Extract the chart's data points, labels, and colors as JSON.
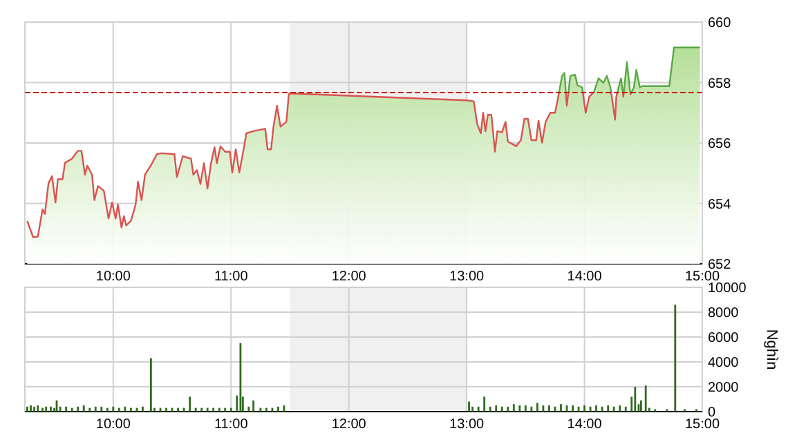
{
  "chart_data": [
    {
      "type": "area",
      "xlim": [
        9.25,
        15
      ],
      "xticks": [
        {
          "value": 10,
          "label": "10:00"
        },
        {
          "value": 11,
          "label": "11:00"
        },
        {
          "value": 12,
          "label": "12:00"
        },
        {
          "value": 13,
          "label": "13:00"
        },
        {
          "value": 14,
          "label": "14:00"
        },
        {
          "value": 15,
          "label": "15:00"
        }
      ],
      "ylim": [
        652,
        660
      ],
      "yticks": [
        652,
        654,
        656,
        658,
        660
      ],
      "grid": true,
      "ref_lines": [
        {
          "axis": "y",
          "value": 657.67,
          "color": "#cc0000",
          "line_style": "dashed"
        }
      ],
      "bands": [
        {
          "axis": "x",
          "from": 11.5,
          "to": 13,
          "color": "#f0f0f0"
        }
      ],
      "series": [
        {
          "color": "#d9534f",
          "x": [
            9.27,
            9.32,
            9.36,
            9.4,
            9.42,
            9.45,
            9.48,
            9.51,
            9.53,
            9.57,
            9.59,
            9.65,
            9.7,
            9.73,
            9.76,
            9.78,
            9.82,
            9.84,
            9.87,
            9.92,
            9.96,
            9.99,
            10.02,
            10.04,
            10.07,
            10.09,
            10.11,
            10.15,
            10.19,
            10.21,
            10.24,
            10.27,
            10.33,
            10.37,
            10.41,
            10.52,
            10.54,
            10.59,
            10.66,
            10.68,
            10.71,
            10.74,
            10.77,
            10.8,
            10.83,
            10.86,
            10.88,
            10.91,
            10.95,
            10.99,
            11.01,
            11.04,
            11.07,
            11.11,
            11.13,
            11.19,
            11.29,
            11.31,
            11.34,
            11.36,
            11.39,
            11.42,
            11.47,
            11.49,
            11.5,
            13.0,
            13.06,
            13.09,
            13.12,
            13.14,
            13.16,
            13.18,
            13.21,
            13.24,
            13.26,
            13.3,
            13.33,
            13.35,
            13.4,
            13.42,
            13.46,
            13.49,
            13.52,
            13.55,
            13.59,
            13.61,
            13.64,
            13.67,
            13.71,
            13.75,
            13.77,
            13.81,
            13.83,
            13.85,
            13.88,
            13.92,
            13.94,
            13.98,
            14.01,
            14.04,
            14.08,
            14.12,
            14.16,
            14.19,
            14.22,
            14.26,
            14.27,
            14.31,
            14.33,
            14.36,
            14.39,
            14.42,
            14.44,
            14.47,
            14.49,
            14.72,
            14.76,
            14.98
          ],
          "values": [
            653.42,
            652.88,
            652.9,
            653.8,
            653.65,
            654.66,
            654.9,
            654.03,
            654.8,
            654.8,
            655.34,
            655.48,
            655.74,
            655.74,
            654.95,
            655.25,
            654.95,
            654.11,
            654.57,
            654.42,
            653.5,
            654.03,
            653.5,
            653.96,
            653.2,
            653.58,
            653.27,
            653.42,
            653.96,
            654.72,
            654.11,
            654.95,
            655.33,
            655.63,
            655.66,
            655.63,
            654.87,
            655.56,
            655.48,
            654.95,
            655.1,
            654.64,
            655.33,
            654.49,
            655.33,
            655.86,
            655.33,
            655.89,
            655.71,
            655.71,
            655.02,
            655.79,
            655.02,
            655.86,
            656.32,
            656.39,
            656.47,
            655.79,
            655.79,
            656.54,
            657.23,
            656.54,
            656.7,
            657.61,
            657.64,
            657.41,
            657.38,
            656.62,
            656.32,
            657.0,
            656.39,
            656.93,
            656.93,
            655.71,
            656.39,
            656.35,
            656.7,
            656.04,
            655.94,
            655.89,
            656.09,
            656.8,
            656.8,
            656.09,
            656.09,
            656.74,
            656.01,
            656.7,
            657.0,
            657.0,
            657.38,
            658.22,
            658.32,
            657.23,
            658.22,
            658.26,
            657.91,
            657.84,
            657.0,
            657.53,
            657.69,
            658.14,
            657.99,
            658.22,
            657.84,
            656.77,
            657.53,
            658.14,
            657.53,
            658.68,
            657.61,
            657.84,
            658.42,
            657.84,
            657.88,
            657.88,
            659.16,
            659.16
          ]
        }
      ]
    },
    {
      "type": "bar",
      "xlim": [
        9.25,
        15
      ],
      "xticks": [
        {
          "value": 10,
          "label": "10:00"
        },
        {
          "value": 11,
          "label": "11:00"
        },
        {
          "value": 12,
          "label": "12:00"
        },
        {
          "value": 13,
          "label": "13:00"
        },
        {
          "value": 14,
          "label": "14:00"
        },
        {
          "value": 15,
          "label": "15:00"
        }
      ],
      "ylim": [
        0,
        10000
      ],
      "yticks": [
        0,
        2000,
        4000,
        6000,
        8000,
        10000
      ],
      "grid": true,
      "ylabel": "Nghìn",
      "bands": [
        {
          "axis": "x",
          "from": 11.5,
          "to": 13,
          "color": "#f0f0f0"
        }
      ],
      "series": [
        {
          "color": "#2f6b1f",
          "x": [
            9.27,
            9.3,
            9.33,
            9.36,
            9.4,
            9.43,
            9.47,
            9.5,
            9.52,
            9.55,
            9.6,
            9.65,
            9.7,
            9.75,
            9.8,
            9.85,
            9.9,
            9.95,
            10.0,
            10.05,
            10.1,
            10.15,
            10.2,
            10.25,
            10.32,
            10.35,
            10.4,
            10.45,
            10.5,
            10.55,
            10.6,
            10.65,
            10.7,
            10.75,
            10.8,
            10.85,
            10.9,
            10.95,
            11.0,
            11.05,
            11.08,
            11.1,
            11.15,
            11.19,
            11.25,
            11.3,
            11.35,
            11.4,
            11.45,
            13.02,
            13.05,
            13.1,
            13.15,
            13.2,
            13.25,
            13.3,
            13.35,
            13.4,
            13.45,
            13.5,
            13.55,
            13.6,
            13.65,
            13.7,
            13.75,
            13.8,
            13.85,
            13.9,
            13.95,
            14.0,
            14.05,
            14.1,
            14.15,
            14.2,
            14.25,
            14.3,
            14.35,
            14.4,
            14.43,
            14.46,
            14.48,
            14.52,
            14.55,
            14.6,
            14.7,
            14.77,
            14.85,
            14.95
          ],
          "values": [
            400,
            500,
            400,
            500,
            300,
            400,
            400,
            300,
            900,
            400,
            400,
            300,
            400,
            500,
            300,
            400,
            400,
            300,
            400,
            300,
            400,
            300,
            300,
            400,
            4300,
            300,
            300,
            300,
            300,
            300,
            300,
            1200,
            300,
            300,
            300,
            300,
            300,
            300,
            300,
            1300,
            5500,
            1200,
            400,
            900,
            300,
            300,
            300,
            400,
            500,
            800,
            400,
            400,
            1200,
            400,
            500,
            400,
            400,
            600,
            500,
            500,
            400,
            700,
            500,
            500,
            400,
            600,
            500,
            500,
            400,
            500,
            400,
            500,
            400,
            500,
            400,
            500,
            400,
            1200,
            2000,
            600,
            900,
            2100,
            300,
            200,
            200,
            8600,
            200,
            200
          ]
        }
      ]
    }
  ]
}
